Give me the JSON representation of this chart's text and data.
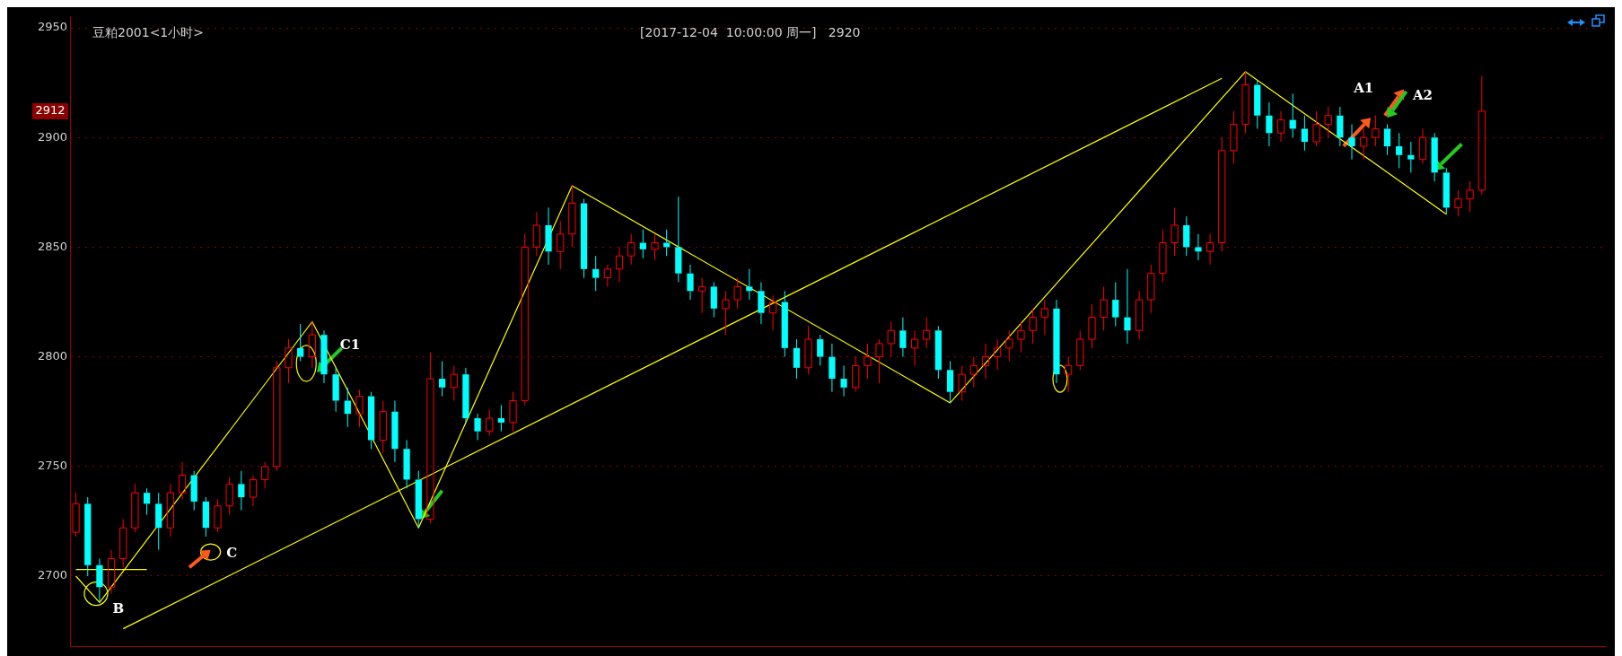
{
  "chart_data": {
    "type": "candlestick",
    "title": "豆粕2001<1小时>",
    "subtitle": "[2017-12-04  10:00:00 周一]   2920",
    "categories": [
      null,
      null,
      null,
      null,
      null,
      null,
      null,
      null,
      null,
      null,
      null,
      null,
      null,
      null,
      null,
      null,
      null,
      null,
      null,
      null,
      null,
      null,
      null,
      null,
      null,
      null,
      null,
      null,
      null,
      null,
      null,
      null,
      null,
      null,
      null,
      null,
      null,
      null,
      null,
      null,
      null,
      null,
      null,
      null,
      null,
      null,
      null,
      null,
      null,
      null,
      null,
      null,
      null,
      null,
      null,
      null,
      null,
      null,
      null,
      null,
      null,
      null,
      null,
      null,
      null,
      null,
      null,
      null,
      null,
      null,
      null,
      null,
      null,
      null,
      null,
      null,
      null,
      null,
      null,
      null,
      null,
      null,
      null,
      null,
      null,
      null,
      null,
      null,
      null,
      null,
      null,
      null,
      null,
      null,
      null,
      null,
      null,
      null,
      null,
      null,
      null,
      null,
      null,
      null,
      null,
      null,
      null,
      null,
      null,
      null,
      null,
      null,
      null,
      null,
      null,
      null,
      null,
      null,
      null,
      null
    ],
    "ohlc": [
      [
        2720,
        2738,
        2718,
        2733
      ],
      [
        2733,
        2736,
        2700,
        2705
      ],
      [
        2705,
        2708,
        2688,
        2695
      ],
      [
        2695,
        2712,
        2692,
        2708
      ],
      [
        2708,
        2726,
        2704,
        2722
      ],
      [
        2722,
        2742,
        2720,
        2738
      ],
      [
        2738,
        2740,
        2728,
        2733
      ],
      [
        2733,
        2738,
        2712,
        2722
      ],
      [
        2722,
        2742,
        2718,
        2738
      ],
      [
        2738,
        2752,
        2735,
        2746
      ],
      [
        2746,
        2748,
        2730,
        2734
      ],
      [
        2734,
        2736,
        2718,
        2722
      ],
      [
        2722,
        2735,
        2720,
        2732
      ],
      [
        2732,
        2745,
        2728,
        2742
      ],
      [
        2742,
        2748,
        2730,
        2736
      ],
      [
        2736,
        2746,
        2732,
        2744
      ],
      [
        2744,
        2752,
        2740,
        2750
      ],
      [
        2750,
        2798,
        2748,
        2795
      ],
      [
        2795,
        2808,
        2788,
        2804
      ],
      [
        2804,
        2815,
        2798,
        2800
      ],
      [
        2800,
        2816,
        2795,
        2810
      ],
      [
        2810,
        2812,
        2788,
        2792
      ],
      [
        2792,
        2795,
        2775,
        2780
      ],
      [
        2780,
        2786,
        2768,
        2774
      ],
      [
        2774,
        2785,
        2768,
        2782
      ],
      [
        2782,
        2784,
        2758,
        2762
      ],
      [
        2762,
        2780,
        2756,
        2775
      ],
      [
        2775,
        2780,
        2752,
        2758
      ],
      [
        2758,
        2762,
        2740,
        2744
      ],
      [
        2744,
        2748,
        2722,
        2726
      ],
      [
        2726,
        2802,
        2724,
        2790
      ],
      [
        2790,
        2798,
        2782,
        2786
      ],
      [
        2786,
        2796,
        2780,
        2792
      ],
      [
        2792,
        2795,
        2770,
        2772
      ],
      [
        2772,
        2774,
        2762,
        2766
      ],
      [
        2766,
        2776,
        2764,
        2772
      ],
      [
        2772,
        2778,
        2766,
        2770
      ],
      [
        2770,
        2784,
        2766,
        2780
      ],
      [
        2780,
        2856,
        2778,
        2850
      ],
      [
        2850,
        2866,
        2846,
        2860
      ],
      [
        2860,
        2868,
        2842,
        2848
      ],
      [
        2848,
        2862,
        2840,
        2856
      ],
      [
        2856,
        2878,
        2850,
        2870
      ],
      [
        2870,
        2872,
        2836,
        2840
      ],
      [
        2840,
        2846,
        2830,
        2836
      ],
      [
        2836,
        2842,
        2832,
        2840
      ],
      [
        2840,
        2850,
        2834,
        2846
      ],
      [
        2846,
        2856,
        2842,
        2852
      ],
      [
        2852,
        2858,
        2845,
        2849
      ],
      [
        2849,
        2856,
        2844,
        2852
      ],
      [
        2852,
        2858,
        2846,
        2850
      ],
      [
        2850,
        2873,
        2834,
        2838
      ],
      [
        2838,
        2842,
        2826,
        2830
      ],
      [
        2830,
        2836,
        2820,
        2832
      ],
      [
        2832,
        2834,
        2818,
        2822
      ],
      [
        2822,
        2830,
        2810,
        2826
      ],
      [
        2826,
        2836,
        2822,
        2832
      ],
      [
        2832,
        2840,
        2826,
        2830
      ],
      [
        2830,
        2834,
        2815,
        2820
      ],
      [
        2820,
        2828,
        2812,
        2825
      ],
      [
        2825,
        2830,
        2800,
        2804
      ],
      [
        2804,
        2808,
        2790,
        2795
      ],
      [
        2795,
        2814,
        2792,
        2808
      ],
      [
        2808,
        2810,
        2796,
        2800
      ],
      [
        2800,
        2806,
        2784,
        2790
      ],
      [
        2790,
        2796,
        2782,
        2786
      ],
      [
        2786,
        2800,
        2784,
        2796
      ],
      [
        2796,
        2806,
        2790,
        2800
      ],
      [
        2800,
        2808,
        2788,
        2806
      ],
      [
        2806,
        2816,
        2800,
        2812
      ],
      [
        2812,
        2818,
        2800,
        2804
      ],
      [
        2804,
        2812,
        2796,
        2808
      ],
      [
        2808,
        2818,
        2804,
        2812
      ],
      [
        2812,
        2814,
        2790,
        2794
      ],
      [
        2794,
        2798,
        2779,
        2784
      ],
      [
        2784,
        2796,
        2780,
        2792
      ],
      [
        2792,
        2800,
        2786,
        2796
      ],
      [
        2796,
        2806,
        2790,
        2800
      ],
      [
        2800,
        2808,
        2794,
        2804
      ],
      [
        2804,
        2812,
        2798,
        2808
      ],
      [
        2808,
        2816,
        2802,
        2812
      ],
      [
        2812,
        2822,
        2806,
        2818
      ],
      [
        2818,
        2826,
        2810,
        2822
      ],
      [
        2822,
        2826,
        2788,
        2792
      ],
      [
        2792,
        2800,
        2784,
        2796
      ],
      [
        2796,
        2812,
        2794,
        2808
      ],
      [
        2808,
        2824,
        2804,
        2818
      ],
      [
        2818,
        2832,
        2812,
        2826
      ],
      [
        2826,
        2834,
        2814,
        2818
      ],
      [
        2818,
        2840,
        2806,
        2812
      ],
      [
        2812,
        2830,
        2808,
        2826
      ],
      [
        2826,
        2842,
        2820,
        2838
      ],
      [
        2838,
        2858,
        2834,
        2852
      ],
      [
        2852,
        2868,
        2846,
        2860
      ],
      [
        2860,
        2864,
        2846,
        2850
      ],
      [
        2850,
        2856,
        2844,
        2848
      ],
      [
        2848,
        2856,
        2842,
        2852
      ],
      [
        2852,
        2900,
        2848,
        2894
      ],
      [
        2894,
        2912,
        2888,
        2906
      ],
      [
        2906,
        2930,
        2902,
        2924
      ],
      [
        2924,
        2926,
        2904,
        2910
      ],
      [
        2910,
        2916,
        2896,
        2902
      ],
      [
        2902,
        2912,
        2898,
        2908
      ],
      [
        2908,
        2920,
        2900,
        2904
      ],
      [
        2904,
        2910,
        2894,
        2898
      ],
      [
        2898,
        2912,
        2896,
        2906
      ],
      [
        2906,
        2914,
        2900,
        2910
      ],
      [
        2910,
        2914,
        2896,
        2900
      ],
      [
        2900,
        2906,
        2890,
        2896
      ],
      [
        2896,
        2904,
        2890,
        2900
      ],
      [
        2900,
        2910,
        2896,
        2904
      ],
      [
        2904,
        2906,
        2892,
        2896
      ],
      [
        2896,
        2902,
        2886,
        2892
      ],
      [
        2892,
        2898,
        2884,
        2890
      ],
      [
        2890,
        2904,
        2888,
        2900
      ],
      [
        2900,
        2902,
        2880,
        2884
      ],
      [
        2884,
        2886,
        2865,
        2868
      ],
      [
        2868,
        2876,
        2864,
        2872
      ],
      [
        2872,
        2880,
        2866,
        2876
      ],
      [
        2876,
        2928,
        2874,
        2912
      ]
    ],
    "series": [
      {
        "type": "line",
        "color": "#ffff00",
        "values": [
          2700,
          null,
          2688,
          null,
          null,
          null,
          null,
          null,
          null,
          null,
          null,
          null,
          null,
          null,
          null,
          null,
          null,
          null,
          null,
          null,
          2816,
          null,
          null,
          null,
          null,
          null,
          null,
          null,
          null,
          2722,
          null,
          null,
          null,
          null,
          null,
          null,
          null,
          null,
          null,
          null,
          null,
          null,
          2878,
          null,
          null,
          null,
          null,
          null,
          null,
          null,
          null,
          null,
          null,
          null,
          null,
          null,
          null,
          null,
          null,
          null,
          null,
          null,
          null,
          null,
          null,
          null,
          null,
          null,
          null,
          null,
          null,
          null,
          null,
          null,
          2779,
          null,
          null,
          null,
          null,
          null,
          null,
          null,
          null,
          null,
          null,
          null,
          null,
          null,
          null,
          null,
          null,
          null,
          null,
          null,
          null,
          null,
          null,
          null,
          null,
          2930,
          null,
          null,
          null,
          null,
          null,
          null,
          null,
          null,
          null,
          null,
          null,
          null,
          null,
          null,
          null,
          null,
          2865,
          null,
          null,
          null
        ]
      },
      {
        "type": "line",
        "color": "#ffff00",
        "values": [
          null,
          null,
          null,
          null,
          2676,
          null,
          null,
          null,
          null,
          null,
          null,
          null,
          null,
          null,
          null,
          null,
          null,
          null,
          null,
          null,
          null,
          null,
          null,
          null,
          null,
          null,
          null,
          null,
          null,
          null,
          null,
          null,
          null,
          null,
          null,
          null,
          null,
          null,
          null,
          null,
          null,
          null,
          null,
          null,
          null,
          null,
          null,
          null,
          null,
          null,
          null,
          null,
          null,
          null,
          null,
          null,
          null,
          null,
          null,
          null,
          null,
          null,
          null,
          null,
          null,
          null,
          null,
          null,
          null,
          null,
          null,
          null,
          null,
          null,
          null,
          null,
          null,
          null,
          null,
          null,
          null,
          null,
          null,
          null,
          null,
          null,
          null,
          null,
          null,
          null,
          null,
          null,
          null,
          null,
          null,
          null,
          null,
          2927,
          null,
          null,
          null,
          null,
          null,
          null,
          null,
          null,
          null,
          null,
          null,
          null,
          null,
          null,
          null,
          null,
          null,
          null,
          null,
          null,
          null,
          null
        ]
      },
      {
        "type": "line",
        "color": "#ffff00",
        "values": [
          2703,
          null,
          null,
          null,
          null,
          null,
          2703,
          null,
          null,
          null,
          null,
          null,
          null,
          null,
          null,
          null,
          null,
          null,
          null,
          null,
          null,
          null,
          null,
          null,
          null,
          null,
          null,
          null,
          null,
          null,
          null,
          null,
          null,
          null,
          null,
          null,
          null,
          null,
          null,
          null,
          null,
          null,
          null,
          null,
          null,
          null,
          null,
          null,
          null,
          null,
          null,
          null,
          null,
          null,
          null,
          null,
          null,
          null,
          null,
          null,
          null,
          null,
          null,
          null,
          null,
          null,
          null,
          null,
          null,
          null,
          null,
          null,
          null,
          null,
          null,
          null,
          null,
          null,
          null,
          null,
          null,
          null,
          null,
          null,
          null,
          null,
          null,
          null,
          null,
          null,
          null,
          null,
          null,
          null,
          null,
          null,
          null,
          null,
          null,
          null,
          null,
          null,
          null,
          null,
          null,
          null,
          null,
          null,
          null,
          null,
          null,
          null,
          null,
          null,
          null,
          null,
          null,
          null,
          null,
          null
        ]
      }
    ],
    "ylim": [
      2668,
      2955
    ],
    "yticks": [
      2700,
      2750,
      2800,
      2850,
      2900,
      2950
    ],
    "grid": "y",
    "tick_labels": "y",
    "annotations": [
      "A1",
      "A2",
      "B",
      "C",
      "C1",
      {
        "text": "2912",
        "y": 2912
      }
    ]
  }
}
